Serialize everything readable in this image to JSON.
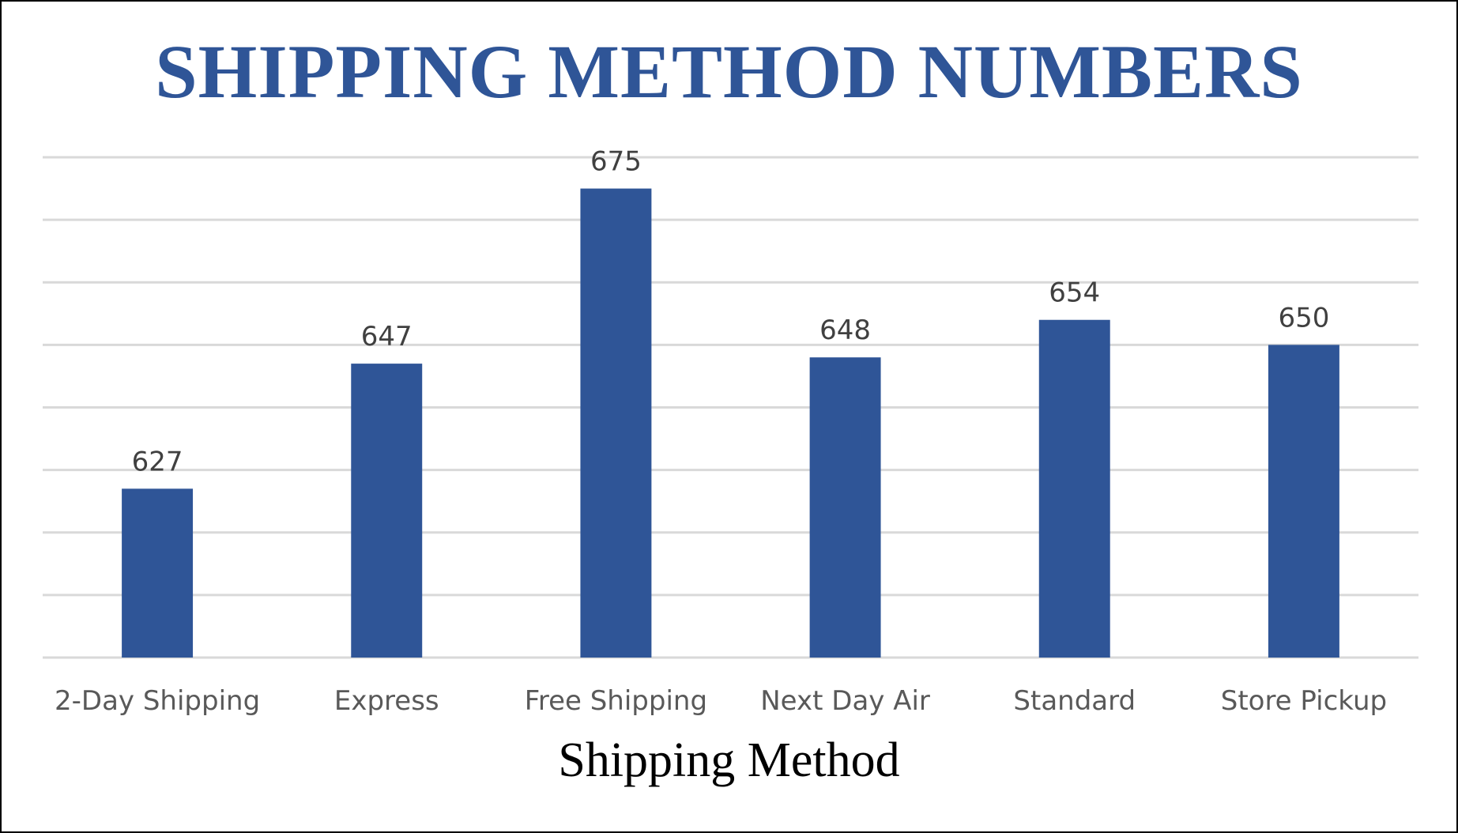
{
  "chart_data": {
    "type": "bar",
    "title": "SHIPPING METHOD NUMBERS",
    "xlabel": "Shipping Method",
    "ylabel": "",
    "categories": [
      "2-Day Shipping",
      "Express",
      "Free Shipping",
      "Next Day Air",
      "Standard",
      "Store Pickup"
    ],
    "values": [
      627,
      647,
      675,
      648,
      654,
      650
    ],
    "ylim": [
      600,
      680
    ],
    "y_grid_step": 10,
    "grid": true,
    "y_axis_labels_shown": false,
    "legend": "none",
    "data_labels": true,
    "colors": {
      "bar": "#2F5597",
      "title": "#2F5597",
      "gridline": "#D9D9D9",
      "data_label": "#404040",
      "tick_label": "#595959"
    }
  }
}
